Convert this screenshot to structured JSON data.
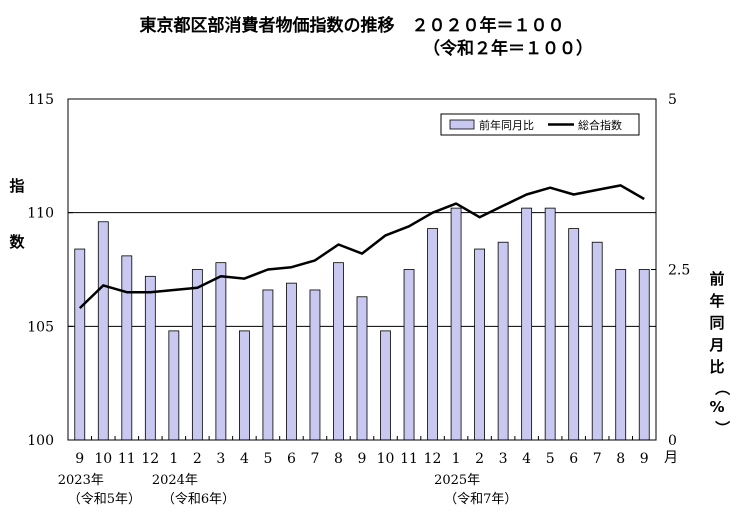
{
  "title_line1": "東京都区部消費者物価指数の推移　２０２０年＝１００",
  "title_line2": "（令和２年＝１００）",
  "left_axis_label": "指数",
  "right_axis_label": "前年同月比（%）",
  "month_unit": "月",
  "colors": {
    "bar_fill": "#c8c8f0",
    "bar_stroke": "#000000",
    "line": "#000000",
    "grid": "#000000"
  },
  "chart_data": {
    "type": "bar",
    "categories": [
      "9",
      "10",
      "11",
      "12",
      "1",
      "2",
      "3",
      "4",
      "5",
      "6",
      "7",
      "8",
      "9",
      "10",
      "11",
      "12",
      "1",
      "2",
      "3",
      "4",
      "5",
      "6",
      "7",
      "8",
      "9"
    ],
    "year_labels": [
      {
        "index": 0,
        "year": "2023年",
        "era": "（令和5年）"
      },
      {
        "index": 4,
        "year": "2024年",
        "era": "（令和6年）"
      },
      {
        "index": 16,
        "year": "2025年",
        "era": "（令和7年）"
      }
    ],
    "series": [
      {
        "name": "前年同月比",
        "kind": "bar",
        "axis": "right",
        "values": [
          2.8,
          3.2,
          2.7,
          2.4,
          1.6,
          2.5,
          2.6,
          1.6,
          2.2,
          2.3,
          2.2,
          2.6,
          2.1,
          1.6,
          2.5,
          3.1,
          3.4,
          2.8,
          2.9,
          3.4,
          3.4,
          3.1,
          2.9,
          2.5,
          2.5
        ]
      },
      {
        "name": "総合指数",
        "kind": "line",
        "axis": "left",
        "values": [
          105.8,
          106.8,
          106.5,
          106.5,
          106.6,
          106.7,
          107.2,
          107.1,
          107.5,
          107.6,
          107.9,
          108.6,
          108.2,
          109.0,
          109.4,
          110.0,
          110.4,
          109.8,
          110.3,
          110.8,
          111.1,
          110.8,
          111.0,
          111.2,
          110.6
        ]
      }
    ],
    "yleft": {
      "ticks": [
        "100",
        "105",
        "110",
        "115"
      ],
      "ylim": [
        100,
        115
      ]
    },
    "yright": {
      "ticks": [
        "0",
        "2.5",
        "5"
      ],
      "ylim": [
        0,
        5
      ]
    },
    "grid_lines": [
      105,
      110
    ],
    "legend": {
      "placement": "top-right",
      "entries": [
        "前年同月比",
        "総合指数"
      ]
    }
  }
}
